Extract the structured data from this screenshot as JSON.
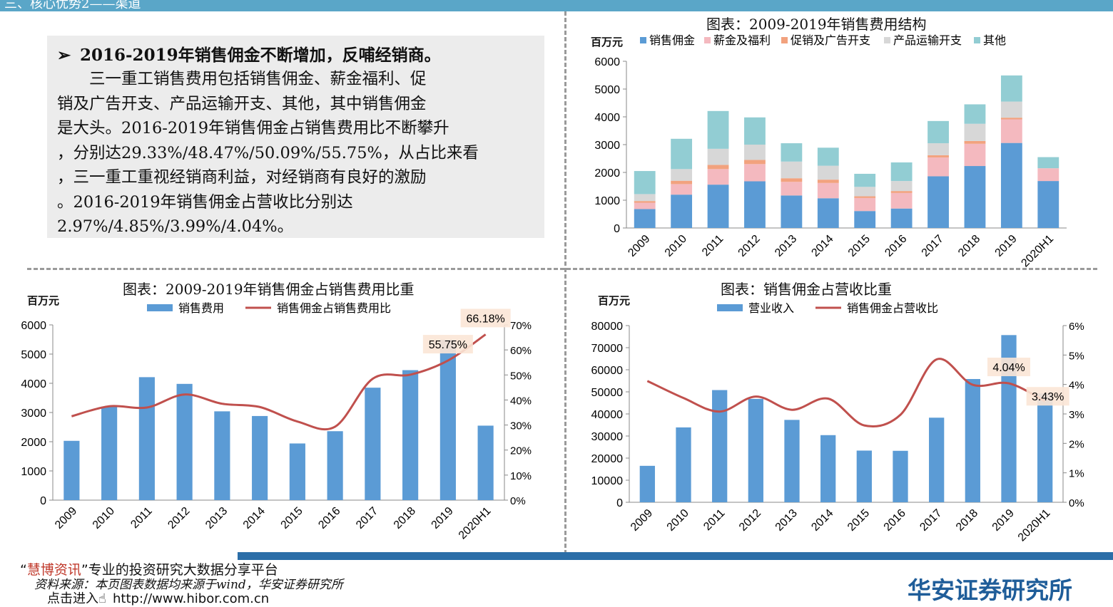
{
  "header": {
    "title": "三、核心优势2——渠道"
  },
  "textbox": {
    "heading": "2016-2019年销售佣金不断增加，反哺经销商。",
    "bullet_icon": "arrow-bullet-icon",
    "lines": [
      "　　三一重工销售费用包括销售佣金、薪金福利、促",
      "销及广告开支、产品运输开支、其他，其中销售佣金",
      "是大头。2016-2019年销售佣金占销售费用比不断攀升",
      "，分别达29.33%/48.47%/50.09%/55.75%，从占比来看",
      "，三一重工重视经销商利益，对经销商有良好的激励",
      "。2016-2019年销售佣金占营收比分别达",
      "2.97%/4.85%/3.99%/4.04%。"
    ]
  },
  "charts": {
    "structure": {
      "title": "图表：2009-2019年销售费用结构",
      "unit": "百万元"
    },
    "ratio_expense": {
      "title": "图表：2009-2019年销售佣金占销售费用比重",
      "unit": "百万元"
    },
    "ratio_revenue": {
      "title": "图表：销售佣金占营收比重",
      "unit": "百万元"
    }
  },
  "chart_data": [
    {
      "type": "bar",
      "stacked": true,
      "title": "图表：2009-2019年销售费用结构",
      "ylabel": "百万元",
      "ylim": [
        0,
        6000
      ],
      "yticks": [
        0,
        1000,
        2000,
        3000,
        4000,
        5000,
        6000
      ],
      "categories": [
        "2009",
        "2010",
        "2011",
        "2012",
        "2013",
        "2014",
        "2015",
        "2016",
        "2017",
        "2018",
        "2019",
        "2020H1"
      ],
      "legend_position": "top",
      "series": [
        {
          "name": "销售佣金",
          "color": "#5b9bd5",
          "values": [
            680,
            1200,
            1560,
            1680,
            1170,
            1070,
            610,
            700,
            1860,
            2230,
            3060,
            1690
          ]
        },
        {
          "name": "薪金及福利",
          "color": "#f4b9bf",
          "values": [
            230,
            380,
            560,
            620,
            490,
            550,
            470,
            560,
            680,
            800,
            850,
            460
          ]
        },
        {
          "name": "促销及广告开支",
          "color": "#f2a27e",
          "values": [
            60,
            120,
            150,
            150,
            130,
            120,
            60,
            70,
            80,
            100,
            60,
            0
          ]
        },
        {
          "name": "产品运输开支",
          "color": "#d7d7d7",
          "values": [
            250,
            420,
            580,
            550,
            600,
            500,
            340,
            360,
            430,
            620,
            580,
            0
          ]
        },
        {
          "name": "其他",
          "color": "#92cdd3",
          "values": [
            830,
            1090,
            1360,
            980,
            660,
            650,
            470,
            670,
            800,
            700,
            940,
            400
          ]
        }
      ]
    },
    {
      "type": "bar",
      "title": "图表：2009-2019年销售佣金占销售费用比重",
      "ylabel": "百万元",
      "ylim": [
        0,
        6000
      ],
      "yticks": [
        0,
        1000,
        2000,
        3000,
        4000,
        5000,
        6000
      ],
      "y2lim": [
        0,
        70
      ],
      "y2ticks": [
        "0%",
        "10%",
        "20%",
        "30%",
        "40%",
        "50%",
        "60%",
        "70%"
      ],
      "categories": [
        "2009",
        "2010",
        "2011",
        "2012",
        "2013",
        "2014",
        "2015",
        "2016",
        "2017",
        "2018",
        "2019",
        "2020H1"
      ],
      "legend_position": "top",
      "series": [
        {
          "name": "销售费用",
          "kind": "bar",
          "axis": "left",
          "color": "#5b9bd5",
          "values": [
            2030,
            3200,
            4210,
            3980,
            3040,
            2880,
            1940,
            2360,
            3850,
            4450,
            5490,
            2550
          ]
        },
        {
          "name": "销售佣金占销售费用比",
          "kind": "line",
          "axis": "right",
          "unit": "%",
          "color": "#c0504d",
          "values": [
            33.5,
            37.5,
            37.0,
            42.2,
            38.5,
            37.2,
            31.4,
            29.33,
            48.47,
            50.09,
            55.75,
            66.18
          ]
        }
      ],
      "annotations": [
        "55.75%",
        "66.18%"
      ]
    },
    {
      "type": "bar",
      "title": "图表：销售佣金占营收比重",
      "ylabel": "百万元",
      "ylim": [
        0,
        80000
      ],
      "yticks": [
        0,
        10000,
        20000,
        30000,
        40000,
        50000,
        60000,
        70000,
        80000
      ],
      "y2lim": [
        0,
        6
      ],
      "y2ticks": [
        "0%",
        "1%",
        "2%",
        "3%",
        "4%",
        "5%",
        "6%"
      ],
      "categories": [
        "2009",
        "2010",
        "2011",
        "2012",
        "2013",
        "2014",
        "2015",
        "2016",
        "2017",
        "2018",
        "2019",
        "2020H1"
      ],
      "legend_position": "top",
      "series": [
        {
          "name": "营业收入",
          "kind": "bar",
          "axis": "left",
          "color": "#5b9bd5",
          "values": [
            16500,
            33900,
            50800,
            46800,
            37300,
            30400,
            23400,
            23300,
            38300,
            55800,
            75700,
            49300
          ]
        },
        {
          "name": "销售佣金占营收比",
          "kind": "line",
          "axis": "right",
          "unit": "%",
          "color": "#c0504d",
          "values": [
            4.12,
            3.54,
            3.08,
            3.59,
            3.14,
            3.52,
            2.61,
            2.97,
            4.85,
            3.99,
            4.04,
            3.43
          ]
        }
      ],
      "annotations": [
        "4.04%",
        "3.43%"
      ]
    }
  ],
  "footer": {
    "platform_prefix": "“",
    "platform_brand": "慧博资讯",
    "platform_suffix": "”专业的投资研究大数据分享平台",
    "source": "资料来源：本页图表数据均来源于wind，华安证券研究所",
    "link_prefix": "点击进入",
    "link_icon": "pointer-hand-icon",
    "link_url": "http://www.hibor.com.cn",
    "org": "华安证券研究所"
  }
}
